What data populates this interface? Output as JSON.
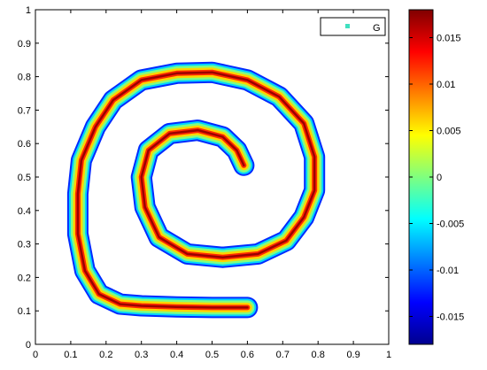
{
  "chart_data": {
    "type": "heatmap",
    "title": "",
    "xlabel": "",
    "ylabel": "",
    "xlim": [
      0,
      1
    ],
    "ylim": [
      0,
      1
    ],
    "x_ticks": [
      "0",
      "0.1",
      "0.2",
      "0.3",
      "0.4",
      "0.5",
      "0.6",
      "0.7",
      "0.8",
      "0.9",
      "1"
    ],
    "y_ticks": [
      "0",
      "0.1",
      "0.2",
      "0.3",
      "0.4",
      "0.5",
      "0.6",
      "0.7",
      "0.8",
      "0.9",
      "1"
    ],
    "legend": {
      "label": "G",
      "marker": "square",
      "color": "#40e0c0",
      "position": "top-right"
    },
    "colorbar": {
      "range": [
        -0.018,
        0.018
      ],
      "ticks": [
        0.015,
        0.01,
        0.005,
        0,
        -0.005,
        -0.01,
        -0.015
      ],
      "tick_labels": [
        "0.015",
        "0.01",
        "0.005",
        "0",
        "-0.005",
        "-0.01",
        "-0.015"
      ],
      "colormap": "jet"
    },
    "band_profile": {
      "description_free": true,
      "offset_values": [
        -0.012,
        -0.006,
        0.0,
        0.006,
        0.012,
        0.017
      ]
    },
    "spiral_path": [
      [
        0.6,
        0.11
      ],
      [
        0.5,
        0.11
      ],
      [
        0.4,
        0.112
      ],
      [
        0.3,
        0.115
      ],
      [
        0.24,
        0.12
      ],
      [
        0.18,
        0.15
      ],
      [
        0.14,
        0.22
      ],
      [
        0.12,
        0.33
      ],
      [
        0.12,
        0.45
      ],
      [
        0.13,
        0.55
      ],
      [
        0.17,
        0.65
      ],
      [
        0.22,
        0.73
      ],
      [
        0.3,
        0.79
      ],
      [
        0.4,
        0.81
      ],
      [
        0.5,
        0.813
      ],
      [
        0.6,
        0.79
      ],
      [
        0.69,
        0.74
      ],
      [
        0.76,
        0.66
      ],
      [
        0.79,
        0.56
      ],
      [
        0.79,
        0.46
      ],
      [
        0.76,
        0.38
      ],
      [
        0.71,
        0.31
      ],
      [
        0.63,
        0.27
      ],
      [
        0.53,
        0.26
      ],
      [
        0.43,
        0.27
      ],
      [
        0.35,
        0.32
      ],
      [
        0.31,
        0.41
      ],
      [
        0.3,
        0.5
      ],
      [
        0.32,
        0.58
      ],
      [
        0.38,
        0.63
      ],
      [
        0.46,
        0.64
      ],
      [
        0.53,
        0.62
      ],
      [
        0.57,
        0.58
      ],
      [
        0.59,
        0.535
      ]
    ]
  }
}
